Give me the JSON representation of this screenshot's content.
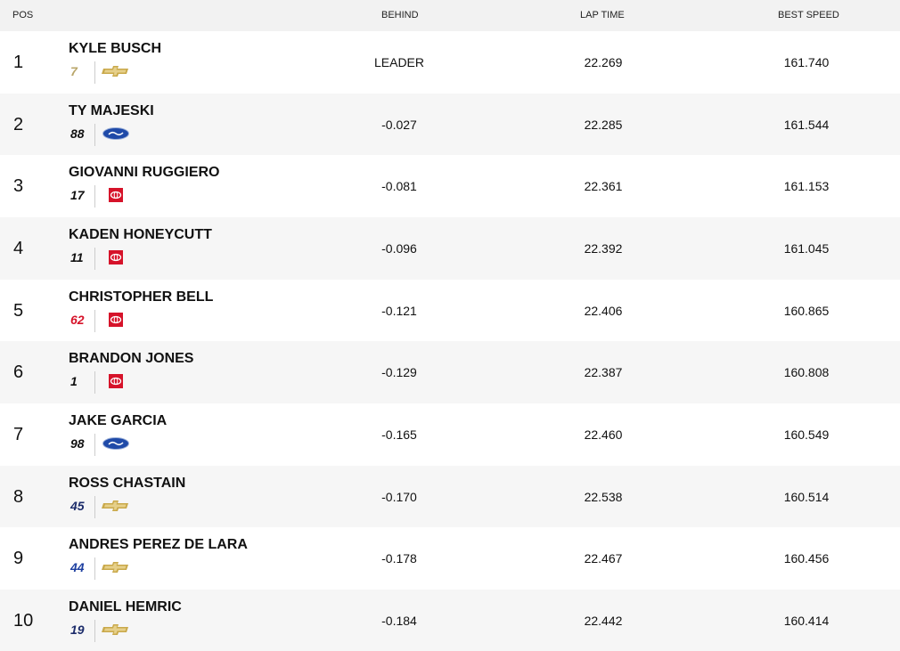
{
  "header": {
    "pos": "POS",
    "behind": "BEHIND",
    "lap_time": "LAP TIME",
    "best_speed": "BEST SPEED"
  },
  "rows": [
    {
      "pos": "1",
      "driver": "KYLE BUSCH",
      "car": "7",
      "behind": "LEADER",
      "lap_time": "22.269",
      "best_speed": "161.740"
    },
    {
      "pos": "2",
      "driver": "TY MAJESKI",
      "car": "88",
      "behind": "-0.027",
      "lap_time": "22.285",
      "best_speed": "161.544"
    },
    {
      "pos": "3",
      "driver": "GIOVANNI RUGGIERO",
      "car": "17",
      "behind": "-0.081",
      "lap_time": "22.361",
      "best_speed": "161.153"
    },
    {
      "pos": "4",
      "driver": "KADEN HONEYCUTT",
      "car": "11",
      "behind": "-0.096",
      "lap_time": "22.392",
      "best_speed": "161.045"
    },
    {
      "pos": "5",
      "driver": "CHRISTOPHER BELL",
      "car": "62",
      "behind": "-0.121",
      "lap_time": "22.406",
      "best_speed": "160.865"
    },
    {
      "pos": "6",
      "driver": "BRANDON JONES",
      "car": "1",
      "behind": "-0.129",
      "lap_time": "22.387",
      "best_speed": "160.808"
    },
    {
      "pos": "7",
      "driver": "JAKE GARCIA",
      "car": "98",
      "behind": "-0.165",
      "lap_time": "22.460",
      "best_speed": "160.549"
    },
    {
      "pos": "8",
      "driver": "ROSS CHASTAIN",
      "car": "45",
      "behind": "-0.170",
      "lap_time": "22.538",
      "best_speed": "160.514"
    },
    {
      "pos": "9",
      "driver": "ANDRES PEREZ DE LARA",
      "car": "44",
      "behind": "-0.178",
      "lap_time": "22.467",
      "best_speed": "160.456"
    },
    {
      "pos": "10",
      "driver": "DANIEL HEMRIC",
      "car": "19",
      "behind": "-0.184",
      "lap_time": "22.442",
      "best_speed": "160.414"
    }
  ]
}
